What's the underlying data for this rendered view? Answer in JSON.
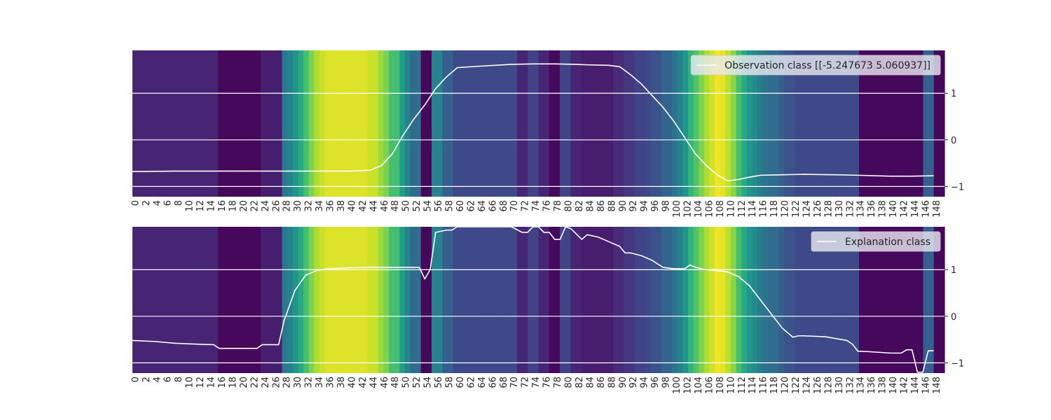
{
  "chart_data": [
    {
      "type": "heatmap+line",
      "legend": {
        "label": "Observation class [[-5.247673  5.060937]]",
        "placement": "upper-right"
      },
      "x_ticks": [
        0,
        2,
        4,
        6,
        8,
        10,
        12,
        14,
        16,
        18,
        20,
        22,
        24,
        26,
        28,
        30,
        32,
        34,
        36,
        38,
        40,
        42,
        44,
        46,
        48,
        50,
        52,
        54,
        56,
        58,
        60,
        62,
        64,
        66,
        68,
        70,
        72,
        74,
        76,
        78,
        80,
        82,
        84,
        86,
        88,
        90,
        92,
        94,
        96,
        98,
        100,
        102,
        104,
        106,
        108,
        110,
        112,
        114,
        116,
        118,
        120,
        122,
        124,
        126,
        128,
        130,
        132,
        134,
        136,
        138,
        140,
        142,
        144,
        146,
        148
      ],
      "x_range": [
        0,
        150
      ],
      "y_ticks": [
        1,
        0,
        -1
      ],
      "y_range": [
        -1.22,
        1.92
      ],
      "y_axis_side": "right",
      "grid": "horizontal",
      "colormap": "viridis",
      "heat_range": [
        0,
        1
      ],
      "heat_values": [
        0.1,
        0.1,
        0.1,
        0.1,
        0.1,
        0.1,
        0.1,
        0.1,
        0.1,
        0.1,
        0.1,
        0.1,
        0.1,
        0.1,
        0.1,
        0.1,
        0.02,
        0.02,
        0.02,
        0.02,
        0.02,
        0.02,
        0.02,
        0.02,
        0.08,
        0.08,
        0.08,
        0.08,
        0.4,
        0.45,
        0.52,
        0.6,
        0.7,
        0.8,
        0.88,
        0.92,
        0.95,
        0.95,
        0.95,
        0.95,
        0.95,
        0.95,
        0.95,
        0.95,
        0.92,
        0.92,
        0.85,
        0.8,
        0.7,
        0.7,
        0.55,
        0.45,
        0.35,
        0.35,
        0.02,
        0.02,
        0.45,
        0.45,
        0.3,
        0.3,
        0.22,
        0.22,
        0.22,
        0.22,
        0.22,
        0.22,
        0.22,
        0.22,
        0.22,
        0.22,
        0.22,
        0.22,
        0.1,
        0.1,
        0.2,
        0.2,
        0.1,
        0.1,
        0.02,
        0.02,
        0.2,
        0.2,
        0.1,
        0.1,
        0.08,
        0.08,
        0.08,
        0.08,
        0.08,
        0.08,
        0.12,
        0.12,
        0.16,
        0.16,
        0.2,
        0.2,
        0.22,
        0.25,
        0.25,
        0.32,
        0.32,
        0.38,
        0.45,
        0.52,
        0.65,
        0.72,
        0.8,
        0.88,
        0.93,
        0.98,
        0.96,
        0.9,
        0.82,
        0.7,
        0.6,
        0.52,
        0.48,
        0.42,
        0.38,
        0.35,
        0.35,
        0.3,
        0.25,
        0.25,
        0.22,
        0.22,
        0.22,
        0.22,
        0.22,
        0.22,
        0.22,
        0.22,
        0.22,
        0.22,
        0.22,
        0.22,
        0.02,
        0.02,
        0.02,
        0.02,
        0.02,
        0.02,
        0.02,
        0.02,
        0.02,
        0.02,
        0.02,
        0.02,
        0.3,
        0.3,
        0.02,
        0.02
      ],
      "line_x": [
        0,
        8,
        16,
        24,
        28,
        40,
        44,
        46,
        48,
        50,
        52,
        54,
        56,
        58,
        60,
        64,
        70,
        74,
        78,
        82,
        84,
        88,
        90,
        92,
        94,
        96,
        98,
        100,
        102,
        104,
        106,
        108,
        110,
        112,
        114,
        116,
        120,
        124,
        130,
        134,
        140,
        144,
        148
      ],
      "line_y": [
        -0.68,
        -0.67,
        -0.67,
        -0.67,
        -0.67,
        -0.67,
        -0.65,
        -0.55,
        -0.3,
        0.1,
        0.45,
        0.75,
        1.1,
        1.35,
        1.55,
        1.58,
        1.62,
        1.63,
        1.63,
        1.62,
        1.61,
        1.6,
        1.57,
        1.4,
        1.2,
        0.95,
        0.7,
        0.4,
        0.05,
        -0.3,
        -0.55,
        -0.75,
        -0.88,
        -0.85,
        -0.8,
        -0.76,
        -0.75,
        -0.74,
        -0.75,
        -0.76,
        -0.78,
        -0.78,
        -0.77
      ]
    },
    {
      "type": "heatmap+line",
      "legend": {
        "label": "Explanation class",
        "placement": "upper-right"
      },
      "x_ticks": [
        0,
        2,
        4,
        6,
        8,
        10,
        12,
        14,
        16,
        18,
        20,
        22,
        24,
        26,
        28,
        30,
        32,
        34,
        36,
        38,
        40,
        42,
        44,
        46,
        48,
        50,
        52,
        54,
        56,
        58,
        60,
        62,
        64,
        66,
        68,
        70,
        72,
        74,
        76,
        78,
        80,
        82,
        84,
        86,
        88,
        90,
        92,
        94,
        96,
        98,
        100,
        102,
        104,
        106,
        108,
        110,
        112,
        114,
        116,
        118,
        120,
        122,
        124,
        126,
        128,
        130,
        132,
        134,
        136,
        138,
        140,
        142,
        144,
        146,
        148
      ],
      "x_range": [
        0,
        150
      ],
      "y_ticks": [
        1,
        0,
        -1
      ],
      "y_range": [
        -1.22,
        1.92
      ],
      "y_axis_side": "right",
      "grid": "horizontal",
      "colormap": "viridis",
      "heat_range": [
        0,
        1
      ],
      "heat_values": [
        0.1,
        0.1,
        0.1,
        0.1,
        0.1,
        0.1,
        0.1,
        0.1,
        0.1,
        0.1,
        0.1,
        0.1,
        0.1,
        0.1,
        0.1,
        0.1,
        0.02,
        0.02,
        0.02,
        0.02,
        0.02,
        0.02,
        0.02,
        0.02,
        0.08,
        0.08,
        0.08,
        0.08,
        0.4,
        0.45,
        0.52,
        0.6,
        0.7,
        0.8,
        0.88,
        0.92,
        0.95,
        0.95,
        0.95,
        0.95,
        0.95,
        0.95,
        0.95,
        0.95,
        0.92,
        0.92,
        0.85,
        0.8,
        0.7,
        0.7,
        0.55,
        0.45,
        0.35,
        0.35,
        0.02,
        0.02,
        0.45,
        0.45,
        0.3,
        0.3,
        0.22,
        0.22,
        0.22,
        0.22,
        0.22,
        0.22,
        0.22,
        0.22,
        0.22,
        0.22,
        0.22,
        0.22,
        0.1,
        0.1,
        0.2,
        0.2,
        0.1,
        0.1,
        0.02,
        0.02,
        0.2,
        0.2,
        0.1,
        0.1,
        0.08,
        0.08,
        0.08,
        0.08,
        0.08,
        0.08,
        0.12,
        0.12,
        0.16,
        0.16,
        0.2,
        0.2,
        0.22,
        0.25,
        0.25,
        0.32,
        0.32,
        0.38,
        0.45,
        0.52,
        0.65,
        0.72,
        0.8,
        0.88,
        0.93,
        0.98,
        0.96,
        0.9,
        0.82,
        0.7,
        0.6,
        0.52,
        0.48,
        0.42,
        0.38,
        0.35,
        0.35,
        0.3,
        0.25,
        0.25,
        0.22,
        0.22,
        0.22,
        0.22,
        0.22,
        0.22,
        0.22,
        0.22,
        0.22,
        0.22,
        0.22,
        0.22,
        0.02,
        0.02,
        0.02,
        0.02,
        0.02,
        0.02,
        0.02,
        0.02,
        0.02,
        0.02,
        0.02,
        0.02,
        0.3,
        0.3,
        0.02,
        0.02
      ],
      "line_x": [
        0,
        4,
        8,
        12,
        15,
        16,
        23,
        24,
        27,
        28,
        30,
        32,
        34,
        36,
        40,
        44,
        48,
        53,
        54,
        55,
        56,
        58,
        59,
        60,
        70,
        72,
        73,
        74,
        75,
        76,
        77,
        78,
        79,
        80,
        81,
        83,
        84,
        86,
        88,
        90,
        91,
        92,
        94,
        96,
        98,
        100,
        102,
        103,
        104,
        106,
        108,
        110,
        112,
        114,
        116,
        118,
        120,
        122,
        123,
        124,
        128,
        132,
        133,
        134,
        136,
        140,
        142,
        143,
        144,
        145,
        146,
        147,
        148
      ],
      "line_y": [
        -0.52,
        -0.54,
        -0.58,
        -0.6,
        -0.61,
        -0.69,
        -0.69,
        -0.61,
        -0.61,
        -0.1,
        0.55,
        0.88,
        0.98,
        1.02,
        1.04,
        1.05,
        1.05,
        1.05,
        0.8,
        1.0,
        1.8,
        1.85,
        1.85,
        1.92,
        1.92,
        1.8,
        1.8,
        1.92,
        1.92,
        1.8,
        1.8,
        1.65,
        1.65,
        1.92,
        1.88,
        1.65,
        1.75,
        1.7,
        1.6,
        1.5,
        1.36,
        1.36,
        1.3,
        1.2,
        1.05,
        1.02,
        1.02,
        1.1,
        1.05,
        1.0,
        0.98,
        0.95,
        0.85,
        0.65,
        0.35,
        0.05,
        -0.25,
        -0.45,
        -0.42,
        -0.42,
        -0.44,
        -0.52,
        -0.6,
        -0.75,
        -0.76,
        -0.79,
        -0.79,
        -0.72,
        -0.72,
        -1.2,
        -1.2,
        -0.74,
        -0.74
      ]
    }
  ]
}
